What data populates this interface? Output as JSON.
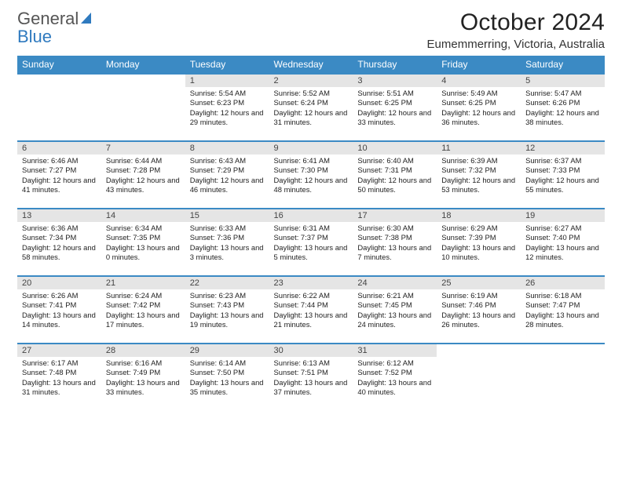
{
  "brand": {
    "name1": "General",
    "name2": "Blue"
  },
  "title": "October 2024",
  "location": "Eumemmerring, Victoria, Australia",
  "colors": {
    "header_bg": "#3b8ac4",
    "header_fg": "#ffffff",
    "daynum_bg": "#e5e5e5",
    "row_border": "#3b8ac4"
  },
  "weekdays": [
    "Sunday",
    "Monday",
    "Tuesday",
    "Wednesday",
    "Thursday",
    "Friday",
    "Saturday"
  ],
  "startOffset": 2,
  "days": [
    {
      "n": "1",
      "sunrise": "5:54 AM",
      "sunset": "6:23 PM",
      "daylight": "12 hours and 29 minutes."
    },
    {
      "n": "2",
      "sunrise": "5:52 AM",
      "sunset": "6:24 PM",
      "daylight": "12 hours and 31 minutes."
    },
    {
      "n": "3",
      "sunrise": "5:51 AM",
      "sunset": "6:25 PM",
      "daylight": "12 hours and 33 minutes."
    },
    {
      "n": "4",
      "sunrise": "5:49 AM",
      "sunset": "6:25 PM",
      "daylight": "12 hours and 36 minutes."
    },
    {
      "n": "5",
      "sunrise": "5:47 AM",
      "sunset": "6:26 PM",
      "daylight": "12 hours and 38 minutes."
    },
    {
      "n": "6",
      "sunrise": "6:46 AM",
      "sunset": "7:27 PM",
      "daylight": "12 hours and 41 minutes."
    },
    {
      "n": "7",
      "sunrise": "6:44 AM",
      "sunset": "7:28 PM",
      "daylight": "12 hours and 43 minutes."
    },
    {
      "n": "8",
      "sunrise": "6:43 AM",
      "sunset": "7:29 PM",
      "daylight": "12 hours and 46 minutes."
    },
    {
      "n": "9",
      "sunrise": "6:41 AM",
      "sunset": "7:30 PM",
      "daylight": "12 hours and 48 minutes."
    },
    {
      "n": "10",
      "sunrise": "6:40 AM",
      "sunset": "7:31 PM",
      "daylight": "12 hours and 50 minutes."
    },
    {
      "n": "11",
      "sunrise": "6:39 AM",
      "sunset": "7:32 PM",
      "daylight": "12 hours and 53 minutes."
    },
    {
      "n": "12",
      "sunrise": "6:37 AM",
      "sunset": "7:33 PM",
      "daylight": "12 hours and 55 minutes."
    },
    {
      "n": "13",
      "sunrise": "6:36 AM",
      "sunset": "7:34 PM",
      "daylight": "12 hours and 58 minutes."
    },
    {
      "n": "14",
      "sunrise": "6:34 AM",
      "sunset": "7:35 PM",
      "daylight": "13 hours and 0 minutes."
    },
    {
      "n": "15",
      "sunrise": "6:33 AM",
      "sunset": "7:36 PM",
      "daylight": "13 hours and 3 minutes."
    },
    {
      "n": "16",
      "sunrise": "6:31 AM",
      "sunset": "7:37 PM",
      "daylight": "13 hours and 5 minutes."
    },
    {
      "n": "17",
      "sunrise": "6:30 AM",
      "sunset": "7:38 PM",
      "daylight": "13 hours and 7 minutes."
    },
    {
      "n": "18",
      "sunrise": "6:29 AM",
      "sunset": "7:39 PM",
      "daylight": "13 hours and 10 minutes."
    },
    {
      "n": "19",
      "sunrise": "6:27 AM",
      "sunset": "7:40 PM",
      "daylight": "13 hours and 12 minutes."
    },
    {
      "n": "20",
      "sunrise": "6:26 AM",
      "sunset": "7:41 PM",
      "daylight": "13 hours and 14 minutes."
    },
    {
      "n": "21",
      "sunrise": "6:24 AM",
      "sunset": "7:42 PM",
      "daylight": "13 hours and 17 minutes."
    },
    {
      "n": "22",
      "sunrise": "6:23 AM",
      "sunset": "7:43 PM",
      "daylight": "13 hours and 19 minutes."
    },
    {
      "n": "23",
      "sunrise": "6:22 AM",
      "sunset": "7:44 PM",
      "daylight": "13 hours and 21 minutes."
    },
    {
      "n": "24",
      "sunrise": "6:21 AM",
      "sunset": "7:45 PM",
      "daylight": "13 hours and 24 minutes."
    },
    {
      "n": "25",
      "sunrise": "6:19 AM",
      "sunset": "7:46 PM",
      "daylight": "13 hours and 26 minutes."
    },
    {
      "n": "26",
      "sunrise": "6:18 AM",
      "sunset": "7:47 PM",
      "daylight": "13 hours and 28 minutes."
    },
    {
      "n": "27",
      "sunrise": "6:17 AM",
      "sunset": "7:48 PM",
      "daylight": "13 hours and 31 minutes."
    },
    {
      "n": "28",
      "sunrise": "6:16 AM",
      "sunset": "7:49 PM",
      "daylight": "13 hours and 33 minutes."
    },
    {
      "n": "29",
      "sunrise": "6:14 AM",
      "sunset": "7:50 PM",
      "daylight": "13 hours and 35 minutes."
    },
    {
      "n": "30",
      "sunrise": "6:13 AM",
      "sunset": "7:51 PM",
      "daylight": "13 hours and 37 minutes."
    },
    {
      "n": "31",
      "sunrise": "6:12 AM",
      "sunset": "7:52 PM",
      "daylight": "13 hours and 40 minutes."
    }
  ]
}
